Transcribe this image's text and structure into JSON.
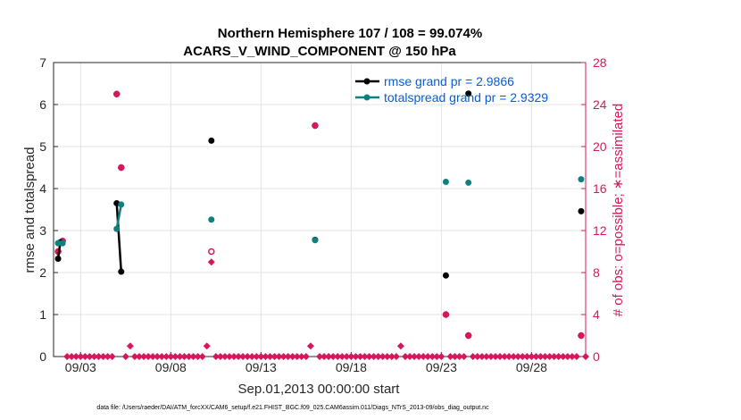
{
  "chart_data": {
    "type": "scatter",
    "title_line1": "Northern Hemisphere 107 / 108 = 99.074%",
    "title_line2": "ACARS_V_WIND_COMPONENT @ 150 hPa",
    "xlabel": "Sep.01,2013 00:00:00 start",
    "ylabel": "rmse and totalspread",
    "y2label": "# of obs: o=possible; ∗=assimilated",
    "xlim": [
      1.5,
      31
    ],
    "ylim": [
      0,
      7
    ],
    "y2lim": [
      0,
      28
    ],
    "x_ticks": [
      {
        "value": 3,
        "label": "09/03"
      },
      {
        "value": 8,
        "label": "09/08"
      },
      {
        "value": 13,
        "label": "09/13"
      },
      {
        "value": 18,
        "label": "09/18"
      },
      {
        "value": 23,
        "label": "09/23"
      },
      {
        "value": 28,
        "label": "09/28"
      }
    ],
    "y_ticks": [
      "0",
      "1",
      "2",
      "3",
      "4",
      "5",
      "6",
      "7"
    ],
    "y2_ticks": [
      "0",
      "4",
      "8",
      "12",
      "16",
      "20",
      "24",
      "28"
    ],
    "grid": true,
    "legend_position": "top-right",
    "series": [
      {
        "name": "rmse grand pr = 2.9866",
        "color": "#000000",
        "points": [
          [
            1.75,
            2.33
          ],
          [
            1.875,
            2.72
          ],
          [
            5.0,
            3.65
          ],
          [
            5.25,
            2.02
          ],
          [
            10.25,
            5.14
          ],
          [
            16.0,
            2.78
          ],
          [
            23.25,
            1.93
          ],
          [
            24.5,
            6.26
          ],
          [
            30.75,
            3.46
          ]
        ],
        "line_segments": [
          [
            [
              1.75,
              2.33
            ],
            [
              1.875,
              2.72
            ]
          ],
          [
            [
              5.0,
              3.65
            ],
            [
              5.25,
              2.02
            ]
          ]
        ]
      },
      {
        "name": "totalspread grand pr = 2.9329",
        "color": "#0f8080",
        "points": [
          [
            1.75,
            2.7
          ],
          [
            2.0,
            2.7
          ],
          [
            5.0,
            3.04
          ],
          [
            5.25,
            3.62
          ],
          [
            10.25,
            3.26
          ],
          [
            16.0,
            2.77
          ],
          [
            23.25,
            4.16
          ],
          [
            24.5,
            4.14
          ],
          [
            30.75,
            4.22
          ]
        ],
        "line_segments": [
          [
            [
              1.75,
              2.7
            ],
            [
              2.0,
              2.7
            ]
          ],
          [
            [
              5.0,
              3.04
            ],
            [
              5.25,
              3.62
            ]
          ]
        ]
      }
    ],
    "obs_possible": {
      "color": "#d6175c",
      "points": [
        [
          1.75,
          10
        ],
        [
          2.0,
          11
        ],
        [
          5.0,
          25
        ],
        [
          5.25,
          18
        ],
        [
          10.25,
          10
        ],
        [
          16.0,
          22
        ],
        [
          23.25,
          4
        ],
        [
          24.5,
          2
        ],
        [
          30.75,
          2
        ]
      ]
    },
    "obs_assimilated": {
      "color": "#d6175c",
      "start": 1.75,
      "step": 0.25,
      "count": 118,
      "nonzero": [
        [
          1.75,
          10
        ],
        [
          2.0,
          11
        ],
        [
          5.0,
          25
        ],
        [
          5.25,
          18
        ],
        [
          5.75,
          1
        ],
        [
          10.0,
          1
        ],
        [
          10.25,
          9
        ],
        [
          15.75,
          1
        ],
        [
          16.0,
          22
        ],
        [
          20.75,
          1
        ],
        [
          23.25,
          4
        ],
        [
          24.5,
          2
        ],
        [
          30.75,
          2
        ]
      ]
    }
  },
  "footnote": "data file: /Users/raeder/DAI/ATM_forcXX/CAM6_setup/f.e21.FHIST_BGC.f09_025.CAM6assim.011/Diags_NTrS_2013-09/obs_diag_output.nc"
}
